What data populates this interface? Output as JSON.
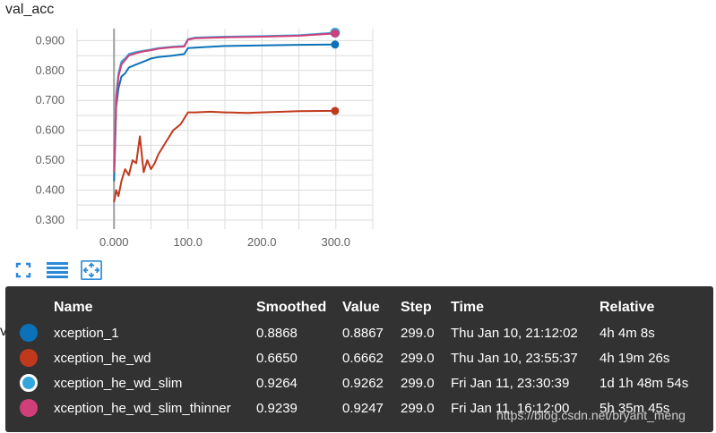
{
  "chart_data": {
    "type": "line",
    "title": "val_acc",
    "xlim": [
      -50,
      350
    ],
    "ylim": [
      0.27,
      0.94
    ],
    "x_ticks": [
      "0.000",
      "100.0",
      "200.0",
      "300.0"
    ],
    "y_ticks": [
      "0.300",
      "0.400",
      "0.500",
      "0.600",
      "0.700",
      "0.800",
      "0.900"
    ],
    "series": [
      {
        "name": "xception_1",
        "color": "#0b72b9",
        "x": [
          0,
          3,
          6,
          10,
          15,
          20,
          30,
          40,
          50,
          60,
          80,
          95,
          100,
          120,
          150,
          200,
          250,
          299
        ],
        "values": [
          0.43,
          0.68,
          0.74,
          0.78,
          0.79,
          0.81,
          0.82,
          0.83,
          0.84,
          0.845,
          0.85,
          0.855,
          0.875,
          0.878,
          0.882,
          0.884,
          0.886,
          0.8868
        ]
      },
      {
        "name": "xception_he_wd",
        "color": "#c0391d",
        "x": [
          0,
          3,
          6,
          10,
          15,
          20,
          25,
          30,
          35,
          40,
          45,
          50,
          55,
          60,
          70,
          80,
          90,
          100,
          110,
          130,
          150,
          180,
          200,
          250,
          299
        ],
        "values": [
          0.36,
          0.4,
          0.38,
          0.43,
          0.47,
          0.45,
          0.5,
          0.49,
          0.58,
          0.46,
          0.5,
          0.47,
          0.49,
          0.52,
          0.56,
          0.6,
          0.62,
          0.66,
          0.66,
          0.662,
          0.66,
          0.658,
          0.66,
          0.664,
          0.665
        ]
      },
      {
        "name": "xception_he_wd_slim",
        "color": "#33a7dc",
        "x": [
          0,
          3,
          6,
          10,
          15,
          20,
          30,
          40,
          50,
          60,
          80,
          95,
          100,
          110,
          150,
          200,
          250,
          299
        ],
        "values": [
          0.48,
          0.72,
          0.79,
          0.83,
          0.84,
          0.855,
          0.862,
          0.866,
          0.87,
          0.875,
          0.88,
          0.882,
          0.905,
          0.91,
          0.913,
          0.915,
          0.918,
          0.9264
        ]
      },
      {
        "name": "xception_he_wd_slim_thinner",
        "color": "#d13f78",
        "x": [
          0,
          3,
          6,
          10,
          15,
          20,
          30,
          40,
          50,
          60,
          80,
          95,
          100,
          110,
          150,
          200,
          250,
          299
        ],
        "values": [
          0.46,
          0.7,
          0.78,
          0.82,
          0.835,
          0.85,
          0.858,
          0.864,
          0.868,
          0.873,
          0.878,
          0.88,
          0.903,
          0.908,
          0.911,
          0.913,
          0.916,
          0.9239
        ]
      }
    ],
    "grid": true,
    "legend": "none"
  },
  "behind_label": "val_loss",
  "tooltip": {
    "headers": {
      "name": "Name",
      "smoothed": "Smoothed",
      "value": "Value",
      "step": "Step",
      "time": "Time",
      "relative": "Relative"
    },
    "rows": [
      {
        "name": "xception_1",
        "smoothed": "0.8868",
        "value": "0.8867",
        "step": "299.0",
        "time": "Thu Jan 10, 21:12:02",
        "relative": "4h 4m 8s",
        "color": "#0b72b9",
        "selected": false
      },
      {
        "name": "xception_he_wd",
        "smoothed": "0.6650",
        "value": "0.6662",
        "step": "299.0",
        "time": "Thu Jan 10, 23:55:37",
        "relative": "4h 19m 26s",
        "color": "#c0391d",
        "selected": false
      },
      {
        "name": "xception_he_wd_slim",
        "smoothed": "0.9264",
        "value": "0.9262",
        "step": "299.0",
        "time": "Fri Jan 11, 23:30:39",
        "relative": "1d 1h 48m 54s",
        "color": "#33a7dc",
        "selected": true
      },
      {
        "name": "xception_he_wd_slim_thinner",
        "smoothed": "0.9239",
        "value": "0.9247",
        "step": "299.0",
        "time": "Fri Jan 11, 16:12:00",
        "relative": "5h 35m 45s",
        "color": "#d13f78",
        "selected": false
      }
    ]
  },
  "toolbar": {
    "fullscreen_icon": "fullscreen-icon",
    "log_scale_icon": "list-lines-icon",
    "fit_domain_icon": "fit-domain-icon"
  },
  "watermark": "https://blog.csdn.net/bryant_meng"
}
